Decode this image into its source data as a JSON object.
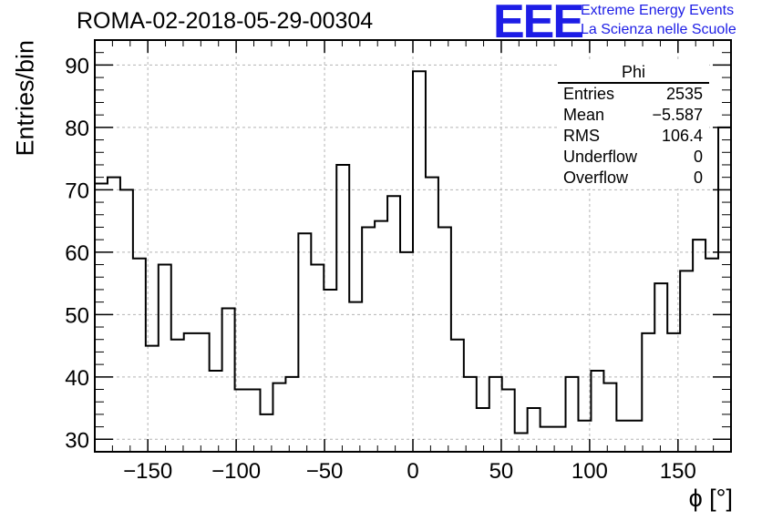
{
  "title": "ROMA-02-2018-05-29-00304",
  "logo": {
    "text": "EEE",
    "line1": "Extreme Energy Events",
    "line2": "La Scienza nelle Scuole",
    "color": "#1d1de6"
  },
  "stats": {
    "name": "Phi",
    "rows": [
      {
        "label": "Entries",
        "value": "2535"
      },
      {
        "label": "Mean",
        "value": "−5.587"
      },
      {
        "label": "RMS",
        "value": "106.4"
      },
      {
        "label": "Underflow",
        "value": "0"
      },
      {
        "label": "Overflow",
        "value": "0"
      }
    ]
  },
  "chart_data": {
    "type": "histogram",
    "title": "ROMA-02-2018-05-29-00304",
    "xlabel": "ϕ [°]",
    "ylabel": "Entries/bin",
    "xlim": [
      -180,
      180
    ],
    "ylim": [
      28,
      94
    ],
    "grid": true,
    "bin_edges": [
      -180,
      -172.8,
      -165.6,
      -158.4,
      -151.2,
      -144,
      -136.8,
      -129.6,
      -122.4,
      -115.2,
      -108,
      -100.8,
      -93.6,
      -86.4,
      -79.2,
      -72,
      -64.8,
      -57.6,
      -50.4,
      -43.2,
      -36,
      -28.8,
      -21.6,
      -14.4,
      -7.2,
      0,
      7.2,
      14.4,
      21.6,
      28.8,
      36,
      43.2,
      50.4,
      57.6,
      64.8,
      72,
      79.2,
      86.4,
      93.6,
      100.8,
      108,
      115.2,
      122.4,
      129.6,
      136.8,
      144,
      151.2,
      158.4,
      165.6,
      172.8,
      180
    ],
    "values": [
      71,
      72,
      70,
      59,
      45,
      58,
      46,
      47,
      47,
      41,
      51,
      38,
      38,
      34,
      39,
      40,
      63,
      58,
      54,
      74,
      52,
      64,
      65,
      69,
      60,
      89,
      72,
      64,
      46,
      40,
      35,
      40,
      38,
      31,
      35,
      32,
      32,
      40,
      33,
      41,
      39,
      33,
      33,
      47,
      55,
      47,
      57,
      62,
      59,
      80
    ],
    "xticks": [
      -150,
      -100,
      -50,
      0,
      50,
      100,
      150
    ],
    "xtick_labels": [
      "−150",
      "−100",
      "−50",
      "0",
      "50",
      "100",
      "150"
    ],
    "yticks": [
      30,
      40,
      50,
      60,
      70,
      80,
      90
    ],
    "ytick_labels": [
      "30",
      "40",
      "50",
      "60",
      "70",
      "80",
      "90"
    ]
  }
}
